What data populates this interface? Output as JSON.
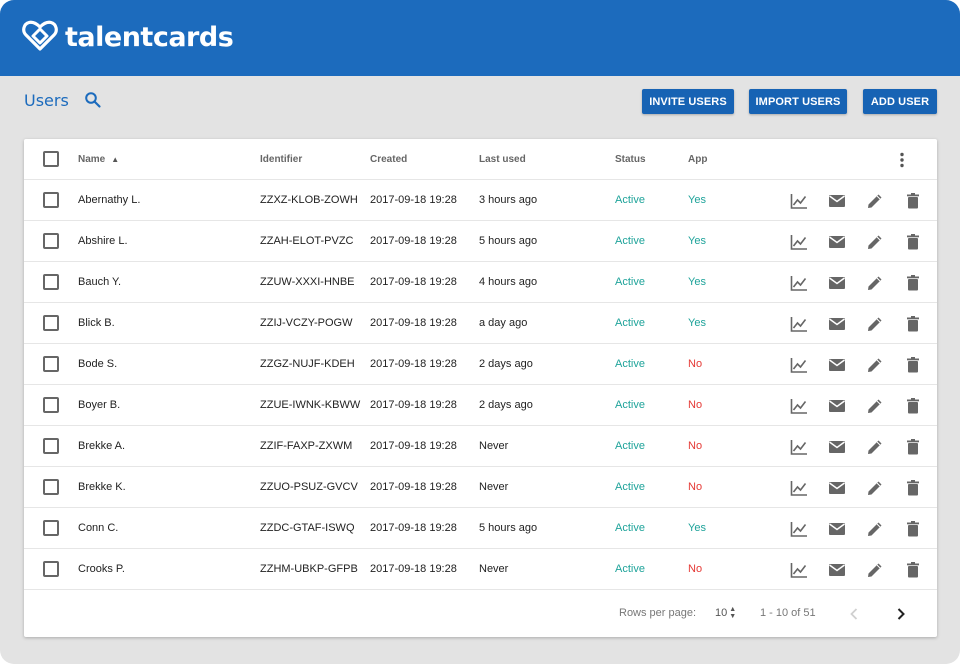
{
  "app": {
    "brand": "talentcards"
  },
  "page": {
    "title": "Users"
  },
  "toolbar": {
    "invite_label": "INVITE USERS",
    "import_label": "IMPORT USERS",
    "add_label": "ADD USER"
  },
  "table": {
    "headers": {
      "name": "Name",
      "identifier": "Identifier",
      "created": "Created",
      "last_used": "Last used",
      "status": "Status",
      "app": "App"
    },
    "rows": [
      {
        "name": "Abernathy L.",
        "identifier": "ZZXZ-KLOB-ZOWH",
        "created": "2017-09-18 19:28",
        "last_used": "3 hours ago",
        "status": "Active",
        "app": "Yes"
      },
      {
        "name": "Abshire L.",
        "identifier": "ZZAH-ELOT-PVZC",
        "created": "2017-09-18 19:28",
        "last_used": "5 hours ago",
        "status": "Active",
        "app": "Yes"
      },
      {
        "name": "Bauch Y.",
        "identifier": "ZZUW-XXXI-HNBE",
        "created": "2017-09-18 19:28",
        "last_used": "4 hours ago",
        "status": "Active",
        "app": "Yes"
      },
      {
        "name": "Blick B.",
        "identifier": "ZZIJ-VCZY-POGW",
        "created": "2017-09-18 19:28",
        "last_used": "a day ago",
        "status": "Active",
        "app": "Yes"
      },
      {
        "name": "Bode S.",
        "identifier": "ZZGZ-NUJF-KDEH",
        "created": "2017-09-18 19:28",
        "last_used": "2 days ago",
        "status": "Active",
        "app": "No"
      },
      {
        "name": "Boyer B.",
        "identifier": "ZZUE-IWNK-KBWW",
        "created": "2017-09-18 19:28",
        "last_used": "2 days ago",
        "status": "Active",
        "app": "No"
      },
      {
        "name": "Brekke A.",
        "identifier": "ZZIF-FAXP-ZXWM",
        "created": "2017-09-18 19:28",
        "last_used": "Never",
        "status": "Active",
        "app": "No"
      },
      {
        "name": "Brekke K.",
        "identifier": "ZZUO-PSUZ-GVCV",
        "created": "2017-09-18 19:28",
        "last_used": "Never",
        "status": "Active",
        "app": "No"
      },
      {
        "name": "Conn C.",
        "identifier": "ZZDC-GTAF-ISWQ",
        "created": "2017-09-18 19:28",
        "last_used": "5 hours ago",
        "status": "Active",
        "app": "Yes"
      },
      {
        "name": "Crooks P.",
        "identifier": "ZZHM-UBKP-GFPB",
        "created": "2017-09-18 19:28",
        "last_used": "Never",
        "status": "Active",
        "app": "No"
      }
    ]
  },
  "pagination": {
    "rows_per_page_label": "Rows per page:",
    "rows_per_page_value": "10",
    "range_label": "1 - 10 of 51"
  },
  "colors": {
    "header_blue": "#1c6bbd",
    "button_blue": "#1763b4",
    "active_teal": "#1ea39a",
    "no_red": "#e53935"
  },
  "icons": {
    "logo": "heart-logo-icon",
    "search": "search-icon",
    "more": "more-vert-icon",
    "row_actions": [
      "stats-chart-icon",
      "mail-icon",
      "edit-pencil-icon",
      "delete-trash-icon"
    ],
    "prev": "chevron-left-icon",
    "next": "chevron-right-icon"
  }
}
